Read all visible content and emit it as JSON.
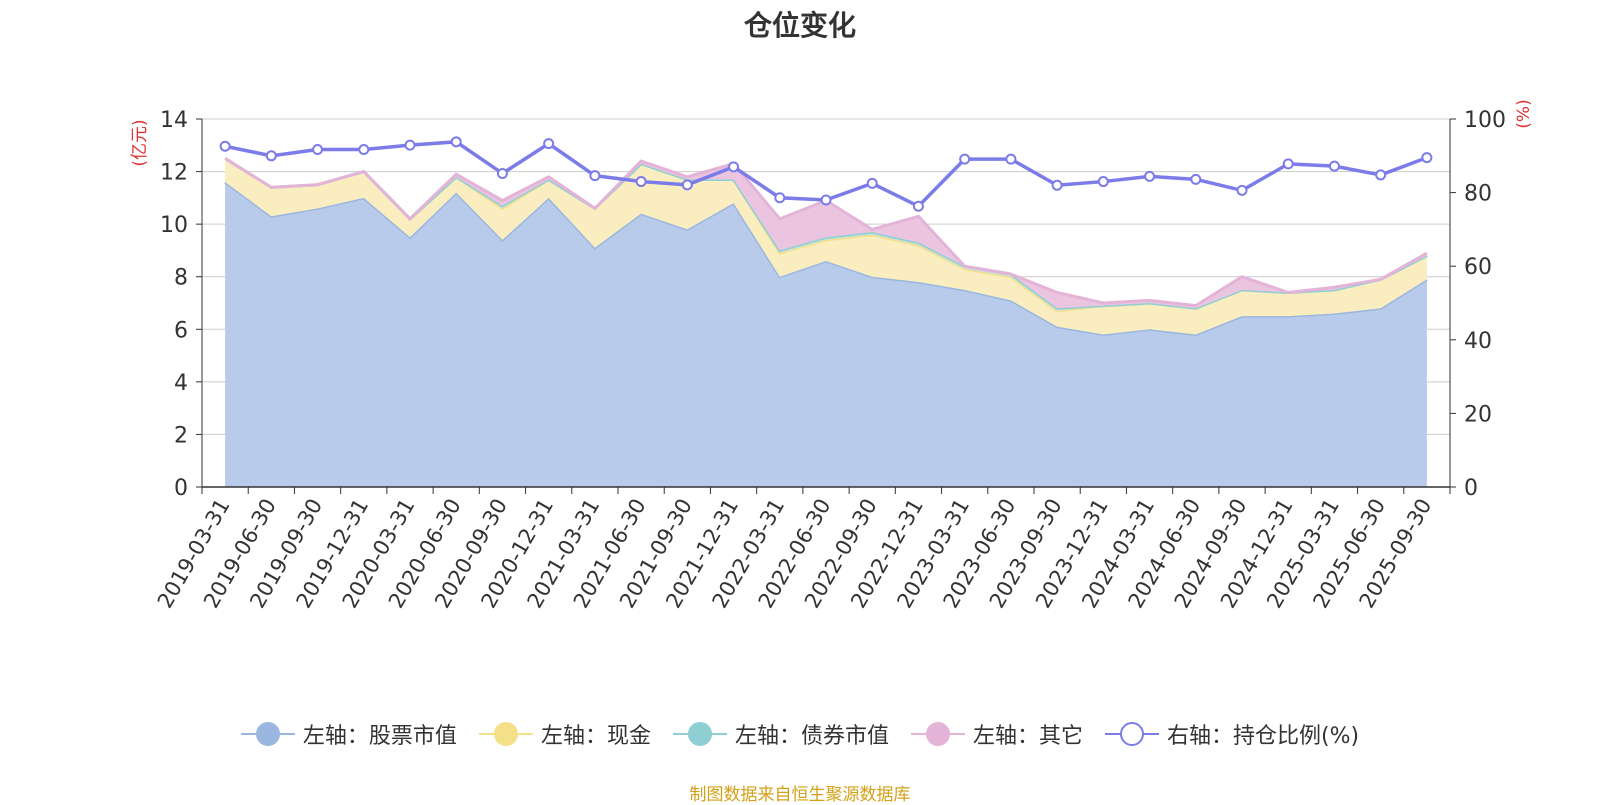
{
  "chart_data": {
    "type": "area",
    "title": "仓位变化",
    "left_axis_unit": "(亿元)",
    "right_axis_unit": "(%)",
    "ylim_left": [
      0,
      14
    ],
    "yticks_left": [
      "0",
      "2",
      "4",
      "6",
      "8",
      "10",
      "12",
      "14"
    ],
    "ylim_right": [
      0,
      100
    ],
    "yticks_right": [
      "0",
      "20",
      "40",
      "60",
      "80",
      "100"
    ],
    "categories": [
      "2019-03-31",
      "2019-06-30",
      "2019-09-30",
      "2019-12-31",
      "2020-03-31",
      "2020-06-30",
      "2020-09-30",
      "2020-12-31",
      "2021-03-31",
      "2021-06-30",
      "2021-09-30",
      "2021-12-31",
      "2022-03-31",
      "2022-06-30",
      "2022-09-30",
      "2022-12-31",
      "2023-03-31",
      "2023-06-30",
      "2023-09-30",
      "2023-12-31",
      "2024-03-31",
      "2024-06-30",
      "2024-09-30",
      "2024-12-31",
      "2025-03-31",
      "2025-06-30",
      "2025-09-30"
    ],
    "stacked_series": [
      {
        "name": "左轴：股票市值",
        "axis": "left",
        "color": "#9ab7e0",
        "fill": "#b8cbea",
        "values": [
          11.6,
          10.3,
          10.6,
          11.0,
          9.5,
          11.2,
          9.4,
          11.0,
          9.1,
          10.4,
          9.8,
          10.8,
          8.0,
          8.6,
          8.0,
          7.8,
          7.5,
          7.1,
          6.1,
          5.8,
          6.0,
          5.8,
          6.5,
          6.5,
          6.6,
          6.8,
          7.9
        ]
      },
      {
        "name": "左轴：现金",
        "axis": "left",
        "color": "#f5e08a",
        "fill": "#faedbf",
        "values": [
          0.9,
          1.1,
          0.9,
          1.0,
          0.7,
          0.6,
          1.2,
          0.7,
          1.5,
          1.9,
          1.9,
          0.9,
          0.9,
          0.8,
          1.6,
          1.4,
          0.8,
          0.9,
          0.6,
          1.1,
          1.0,
          1.0,
          1.0,
          0.9,
          0.9,
          1.1,
          0.9
        ]
      },
      {
        "name": "左轴：债券市值",
        "axis": "left",
        "color": "#8fcfd4",
        "fill": "#c4e2de",
        "values": [
          0.0,
          0.0,
          0.0,
          0.0,
          0.0,
          0.0,
          0.1,
          0.0,
          0.0,
          0.0,
          0.0,
          0.0,
          0.1,
          0.1,
          0.1,
          0.1,
          0.1,
          0.1,
          0.1,
          0.0,
          0.0,
          0.0,
          0.0,
          0.0,
          0.0,
          0.0,
          0.0
        ]
      },
      {
        "name": "左轴：其它",
        "axis": "left",
        "color": "#e4b3d8",
        "fill": "#ebc5e0",
        "values": [
          0.0,
          0.0,
          0.0,
          0.0,
          0.0,
          0.1,
          0.2,
          0.1,
          0.0,
          0.1,
          0.1,
          0.6,
          1.2,
          1.4,
          0.1,
          1.0,
          0.0,
          0.0,
          0.6,
          0.1,
          0.1,
          0.1,
          0.5,
          0.0,
          0.1,
          0.0,
          0.1
        ]
      }
    ],
    "line_series": {
      "name": "右轴：持仓比例(%)",
      "axis": "right",
      "color": "#7b7bea",
      "values": [
        92.6,
        90.0,
        91.7,
        91.7,
        92.9,
        93.8,
        85.2,
        93.3,
        84.6,
        83.0,
        82.1,
        87.0,
        78.6,
        78.0,
        82.5,
        76.3,
        89.1,
        89.1,
        82.0,
        83.0,
        84.4,
        83.6,
        80.6,
        87.8,
        87.2,
        84.8,
        89.5
      ]
    },
    "legend_position": "bottom-center"
  },
  "legend": {
    "items": [
      {
        "label": "左轴：股票市值",
        "color": "#9ab7e0",
        "fill": "#9ab7e0"
      },
      {
        "label": "左轴：现金",
        "color": "#f5e08a",
        "fill": "#f5e08a"
      },
      {
        "label": "左轴：债券市值",
        "color": "#8fcfd4",
        "fill": "#8fcfd4"
      },
      {
        "label": "左轴：其它",
        "color": "#e4b3d8",
        "fill": "#e4b3d8"
      },
      {
        "label": "右轴：持仓比例(%)",
        "color": "#7b7bea",
        "fill": "#ffffff"
      }
    ]
  },
  "footer": {
    "source": "制图数据来自恒生聚源数据库"
  },
  "colors": {
    "axis_unit": "#e03030",
    "grid": "#cccccc",
    "axis": "#333333",
    "text": "#333333"
  }
}
